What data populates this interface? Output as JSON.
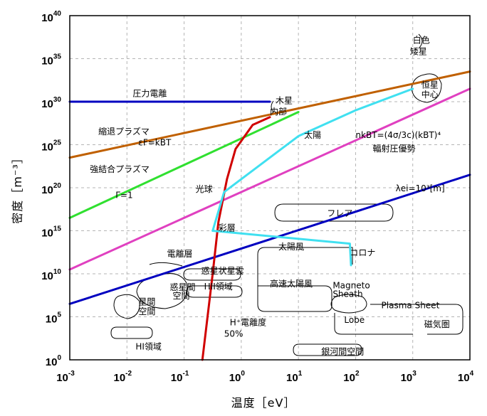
{
  "chart_data": {
    "type": "line",
    "xlabel": "温度［eV］",
    "ylabel": "密度［m⁻³］",
    "xscale": "log",
    "yscale": "log",
    "xlim": [
      -3,
      4
    ],
    "ylim": [
      0,
      40
    ],
    "x_ticks": [
      {
        "base": "10",
        "exp": "-3"
      },
      {
        "base": "10",
        "exp": "-2"
      },
      {
        "base": "10",
        "exp": "-1"
      },
      {
        "base": "10",
        "exp": "0"
      },
      {
        "base": "10",
        "exp": "1"
      },
      {
        "base": "10",
        "exp": "2"
      },
      {
        "base": "10",
        "exp": "3"
      },
      {
        "base": "10",
        "exp": "4"
      }
    ],
    "y_ticks": [
      {
        "base": "10",
        "exp": "0"
      },
      {
        "base": "10",
        "exp": "5"
      },
      {
        "base": "10",
        "exp": "10"
      },
      {
        "base": "10",
        "exp": "15"
      },
      {
        "base": "10",
        "exp": "20"
      },
      {
        "base": "10",
        "exp": "25"
      },
      {
        "base": "10",
        "exp": "30"
      },
      {
        "base": "10",
        "exp": "35"
      },
      {
        "base": "10",
        "exp": "40"
      }
    ],
    "grid": true,
    "series": [
      {
        "color": "#0000c0",
        "points": [
          [
            -3,
            30
          ],
          [
            0.5,
            30
          ]
        ]
      },
      {
        "color": "#c06000",
        "points": [
          [
            -3,
            23.5
          ],
          [
            4,
            33.5
          ]
        ]
      },
      {
        "color": "#30e030",
        "points": [
          [
            -3,
            16.5
          ],
          [
            1,
            28.8
          ]
        ]
      },
      {
        "color": "#e040c0",
        "points": [
          [
            -3,
            10.5
          ],
          [
            4,
            31.5
          ]
        ]
      },
      {
        "color": "#0000c0",
        "points": [
          [
            -3,
            6.5
          ],
          [
            4,
            21.5
          ]
        ]
      },
      {
        "color": "#d00000",
        "points": [
          [
            -0.68,
            0
          ],
          [
            -0.5,
            10
          ],
          [
            -0.4,
            16
          ],
          [
            -0.25,
            21
          ],
          [
            -0.1,
            24.5
          ],
          [
            0.2,
            27.3
          ],
          [
            0.5,
            28.2
          ]
        ]
      },
      {
        "color": "#40e0f0",
        "points": [
          [
            -0.5,
            15
          ],
          [
            -0.3,
            19.5
          ],
          [
            0.2,
            22
          ],
          [
            1,
            26
          ],
          [
            1.5,
            27.5
          ],
          [
            2,
            29
          ],
          [
            3,
            31.5
          ]
        ]
      },
      {
        "color": "#40e0f0",
        "points": [
          [
            -0.5,
            15
          ],
          [
            1.9,
            13.5
          ],
          [
            1.92,
            11
          ]
        ]
      }
    ],
    "annotations": [
      {
        "text": "圧力電離",
        "x": -1.9,
        "y": 30.6
      },
      {
        "text": "木星",
        "x": 0.6,
        "y": 29.8
      },
      {
        "text": "内部",
        "x": 0.5,
        "y": 28.5
      },
      {
        "text": "縮退プラズマ",
        "x": -2.5,
        "y": 26.2
      },
      {
        "text": "εF=kBT",
        "x": -1.8,
        "y": 24.9
      },
      {
        "text": "強結合プラズマ",
        "x": -2.65,
        "y": 21.8
      },
      {
        "text": "Γ=1",
        "x": -2.2,
        "y": 18.8
      },
      {
        "text": "光球",
        "x": -0.8,
        "y": 19.5
      },
      {
        "text": "彩層",
        "x": -0.4,
        "y": 15
      },
      {
        "text": "太陽",
        "x": 1.1,
        "y": 25.8
      },
      {
        "text": "nkBT=(4σ/3c)(kBT)⁴",
        "x": 2,
        "y": 25.8
      },
      {
        "text": "輻射圧優勢",
        "x": 2.3,
        "y": 24.2
      },
      {
        "text": "白色",
        "x": 3.0,
        "y": 36.8
      },
      {
        "text": "矮星",
        "x": 2.95,
        "y": 35.5
      },
      {
        "text": "恒星",
        "x": 3.15,
        "y": 31.6
      },
      {
        "text": "中心",
        "x": 3.15,
        "y": 30.5
      },
      {
        "text": "λei=10³[m]",
        "x": 2.7,
        "y": 19.6
      },
      {
        "text": "フレア",
        "x": 1.5,
        "y": 16.7
      },
      {
        "text": "電離層",
        "x": -1.3,
        "y": 12
      },
      {
        "text": "惑星間",
        "x": -1.25,
        "y": 8.1
      },
      {
        "text": "空間",
        "x": -1.2,
        "y": 7.1
      },
      {
        "text": "惑星状星雲",
        "x": -0.7,
        "y": 10
      },
      {
        "text": "HII領域",
        "x": -0.65,
        "y": 8.2
      },
      {
        "text": "星間",
        "x": -1.8,
        "y": 6.4
      },
      {
        "text": "空間",
        "x": -1.8,
        "y": 5.3
      },
      {
        "text": "HI領域",
        "x": -1.85,
        "y": 1.2
      },
      {
        "text": "H⁺電離度",
        "x": -0.2,
        "y": 4
      },
      {
        "text": "50%",
        "x": -0.3,
        "y": 2.7
      },
      {
        "text": "太陽風",
        "x": 0.65,
        "y": 12.8
      },
      {
        "text": "コロナ",
        "x": 1.9,
        "y": 12.1
      },
      {
        "text": "高速太陽風",
        "x": 0.5,
        "y": 8.5
      },
      {
        "text": "Magneto",
        "x": 1.6,
        "y": 8.3
      },
      {
        "text": "Sheath",
        "x": 1.6,
        "y": 7.3
      },
      {
        "text": "Plasma Sheet",
        "x": 2.45,
        "y": 6
      },
      {
        "text": "Lobe",
        "x": 1.8,
        "y": 4.3
      },
      {
        "text": "磁気圏",
        "x": 3.2,
        "y": 3.8
      },
      {
        "text": "銀河間空間",
        "x": 1.4,
        "y": 0.6
      }
    ]
  }
}
